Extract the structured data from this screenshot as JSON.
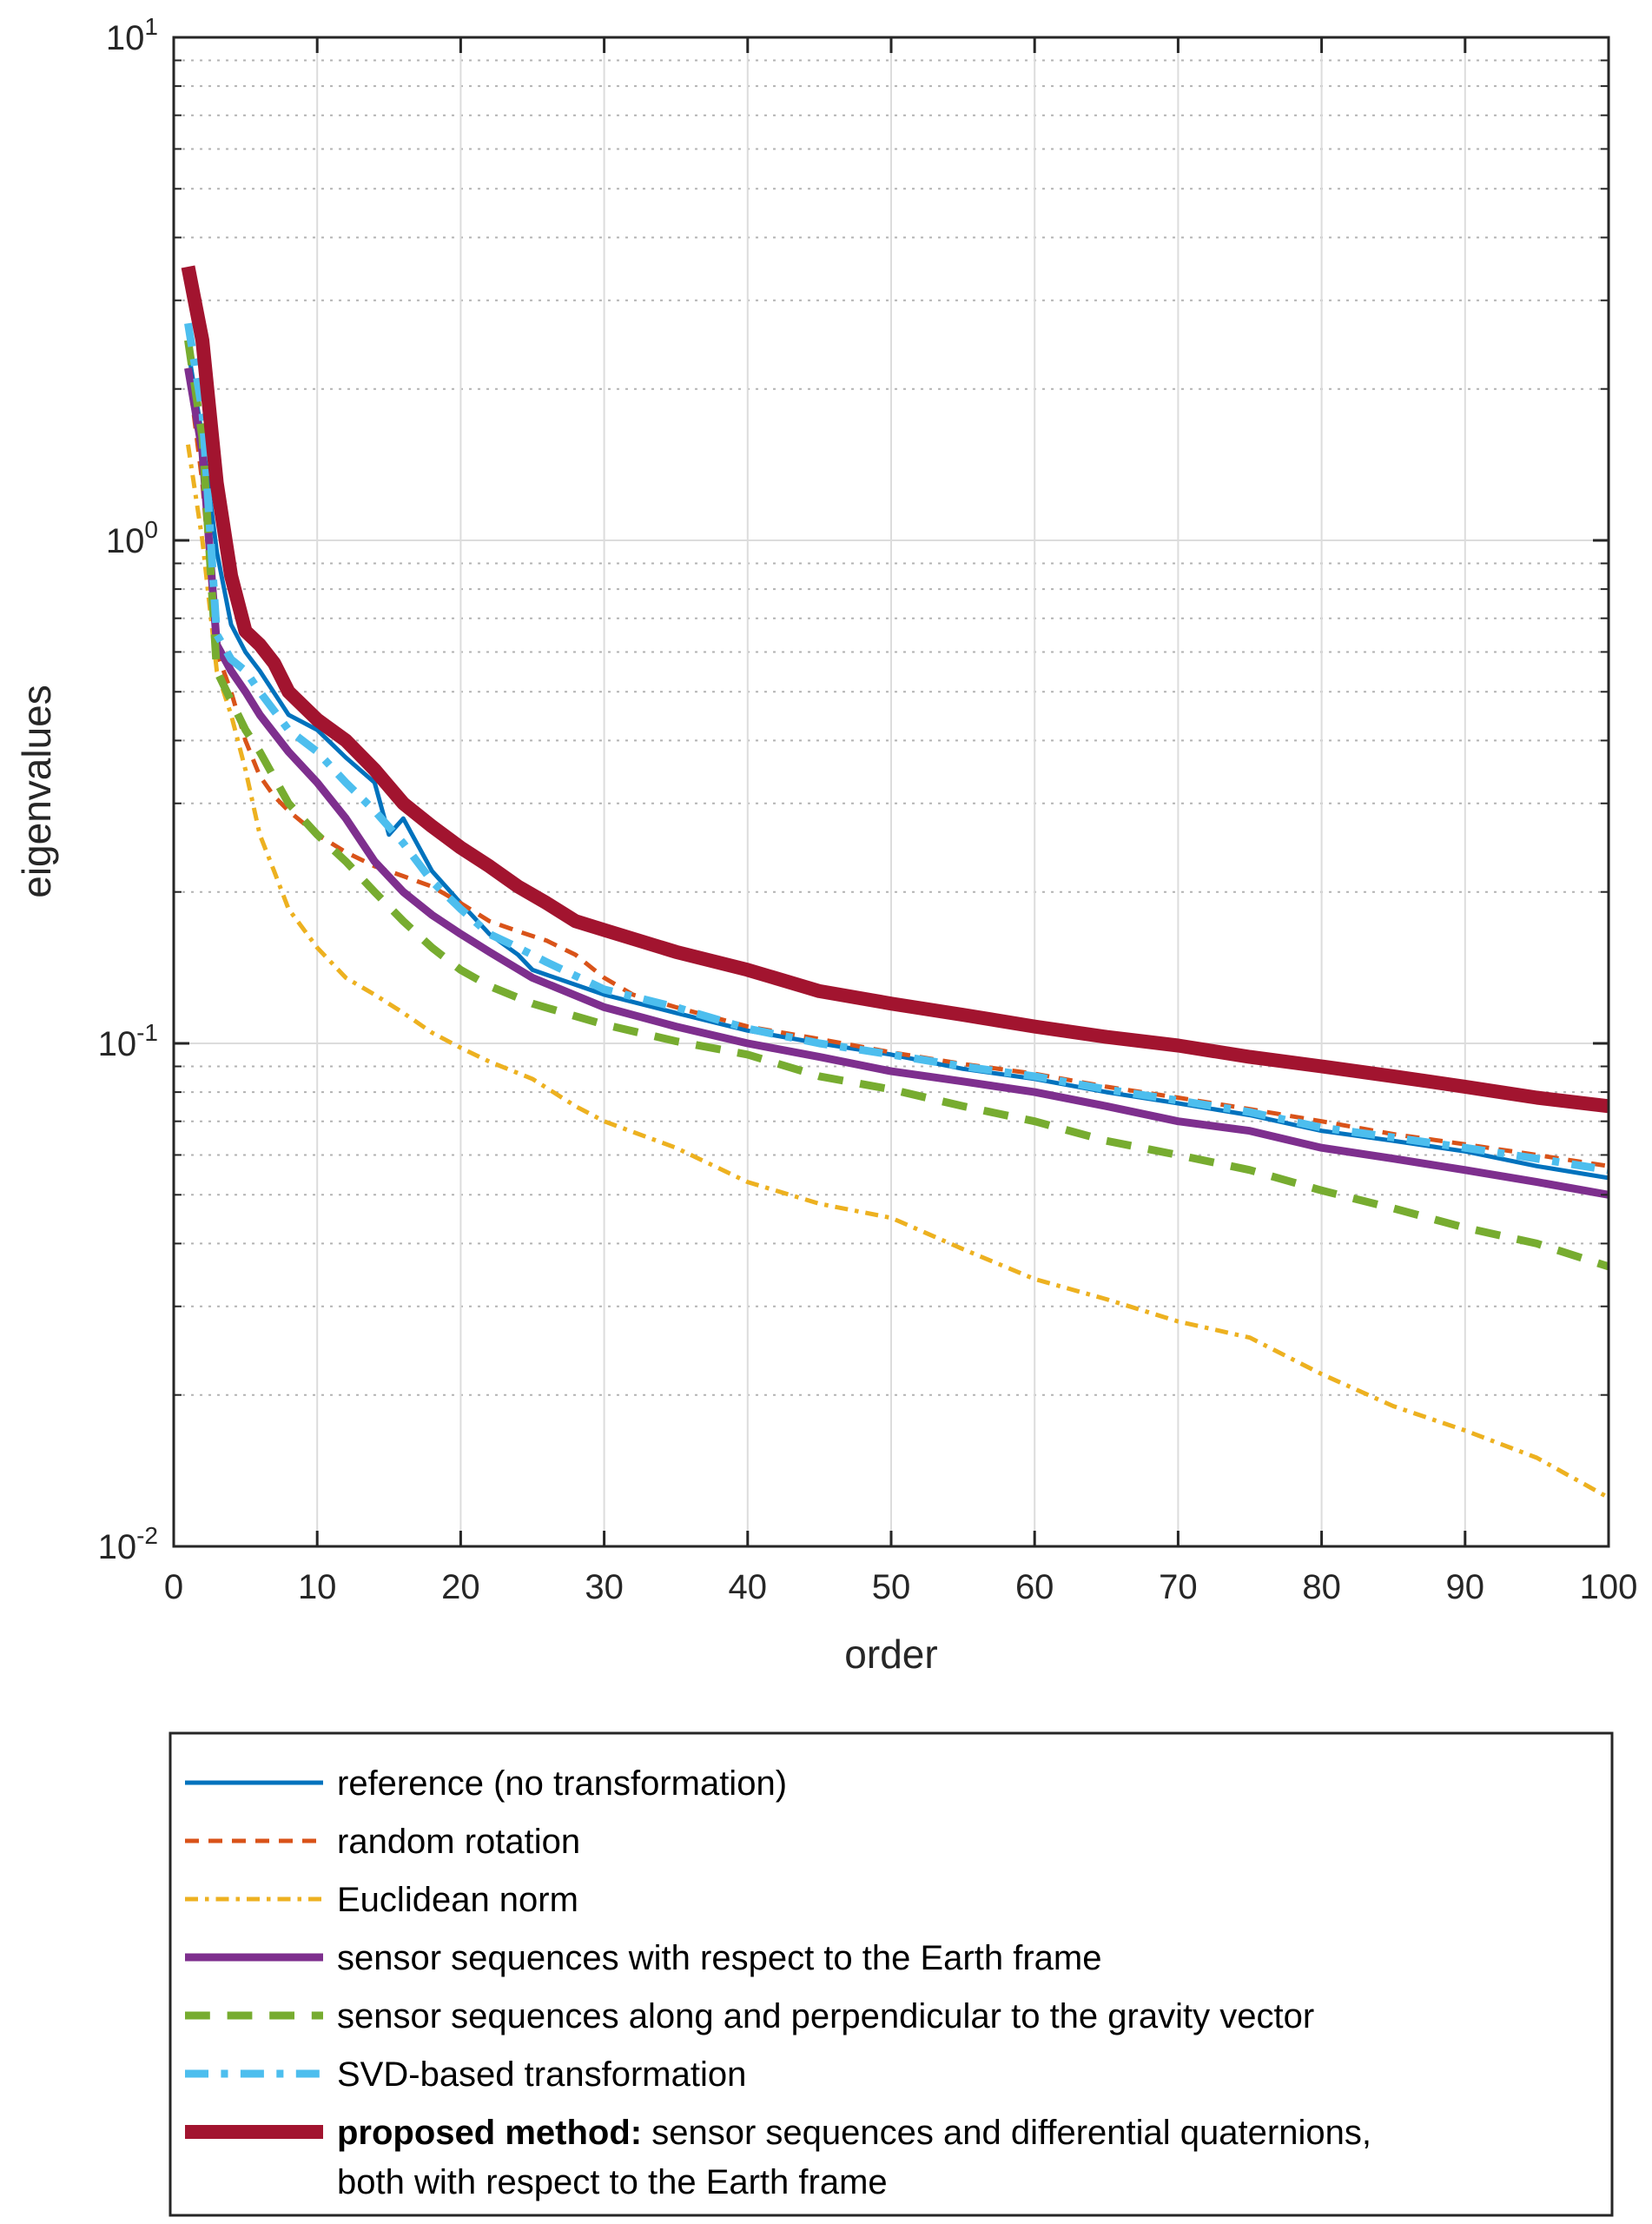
{
  "chart_data": {
    "type": "line",
    "title": "",
    "xlabel": "order",
    "ylabel": "eigenvalues",
    "xlim": [
      0,
      100
    ],
    "ylim": [
      0.01,
      0.1,
      1,
      10
    ],
    "yscale": "log",
    "grid": true,
    "x_ticks": [
      "0",
      "10",
      "20",
      "30",
      "40",
      "50",
      "60",
      "70",
      "80",
      "90",
      "100"
    ],
    "y_ticks": [
      {
        "base": "10",
        "exp": "-2"
      },
      {
        "base": "10",
        "exp": "-1"
      },
      {
        "base": "10",
        "exp": "0"
      },
      {
        "base": "10",
        "exp": "1"
      }
    ],
    "legend_placement": "below",
    "series": [
      {
        "name": "reference (no transformation)",
        "color": "#0072BD",
        "style": "solid",
        "width": 5,
        "points": [
          [
            1,
            2.4
          ],
          [
            2,
            1.6
          ],
          [
            3,
            0.95
          ],
          [
            4,
            0.68
          ],
          [
            5,
            0.6
          ],
          [
            6,
            0.55
          ],
          [
            8,
            0.45
          ],
          [
            10,
            0.42
          ],
          [
            12,
            0.37
          ],
          [
            14,
            0.33
          ],
          [
            15,
            0.26
          ],
          [
            16,
            0.28
          ],
          [
            18,
            0.22
          ],
          [
            20,
            0.19
          ],
          [
            22,
            0.165
          ],
          [
            24,
            0.15
          ],
          [
            25,
            0.14
          ],
          [
            30,
            0.125
          ],
          [
            35,
            0.115
          ],
          [
            40,
            0.106
          ],
          [
            45,
            0.1
          ],
          [
            50,
            0.095
          ],
          [
            55,
            0.089
          ],
          [
            60,
            0.085
          ],
          [
            65,
            0.08
          ],
          [
            70,
            0.076
          ],
          [
            75,
            0.072
          ],
          [
            80,
            0.067
          ],
          [
            85,
            0.064
          ],
          [
            90,
            0.061
          ],
          [
            95,
            0.057
          ],
          [
            100,
            0.054
          ]
        ]
      },
      {
        "name": "random rotation",
        "color": "#D95319",
        "style": "dashed",
        "width": 5,
        "points": [
          [
            1,
            2.2
          ],
          [
            2,
            1.3
          ],
          [
            3,
            0.6
          ],
          [
            4,
            0.5
          ],
          [
            5,
            0.4
          ],
          [
            6,
            0.34
          ],
          [
            7,
            0.31
          ],
          [
            8,
            0.29
          ],
          [
            10,
            0.26
          ],
          [
            12,
            0.24
          ],
          [
            14,
            0.225
          ],
          [
            16,
            0.215
          ],
          [
            18,
            0.205
          ],
          [
            20,
            0.19
          ],
          [
            22,
            0.175
          ],
          [
            24,
            0.167
          ],
          [
            26,
            0.16
          ],
          [
            28,
            0.15
          ],
          [
            30,
            0.135
          ],
          [
            32,
            0.125
          ],
          [
            35,
            0.118
          ],
          [
            40,
            0.108
          ],
          [
            45,
            0.102
          ],
          [
            50,
            0.096
          ],
          [
            55,
            0.091
          ],
          [
            60,
            0.087
          ],
          [
            65,
            0.082
          ],
          [
            70,
            0.078
          ],
          [
            75,
            0.074
          ],
          [
            80,
            0.07
          ],
          [
            85,
            0.066
          ],
          [
            90,
            0.063
          ],
          [
            95,
            0.06
          ],
          [
            100,
            0.057
          ]
        ]
      },
      {
        "name": "Euclidean norm",
        "color": "#EDB120",
        "style": "dashdot",
        "width": 5,
        "points": [
          [
            1,
            1.55
          ],
          [
            2,
            1.0
          ],
          [
            3,
            0.55
          ],
          [
            4,
            0.45
          ],
          [
            5,
            0.35
          ],
          [
            6,
            0.26
          ],
          [
            7,
            0.22
          ],
          [
            8,
            0.185
          ],
          [
            10,
            0.155
          ],
          [
            12,
            0.135
          ],
          [
            14,
            0.125
          ],
          [
            16,
            0.115
          ],
          [
            18,
            0.105
          ],
          [
            20,
            0.098
          ],
          [
            22,
            0.092
          ],
          [
            25,
            0.085
          ],
          [
            28,
            0.075
          ],
          [
            30,
            0.07
          ],
          [
            35,
            0.062
          ],
          [
            40,
            0.053
          ],
          [
            45,
            0.048
          ],
          [
            50,
            0.045
          ],
          [
            55,
            0.039
          ],
          [
            60,
            0.034
          ],
          [
            65,
            0.031
          ],
          [
            70,
            0.028
          ],
          [
            75,
            0.026
          ],
          [
            80,
            0.022
          ],
          [
            85,
            0.019
          ],
          [
            90,
            0.017
          ],
          [
            95,
            0.015
          ],
          [
            100,
            0.0125
          ]
        ]
      },
      {
        "name": "sensor sequences with respect to the Earth frame",
        "color": "#7E2F8E",
        "style": "solid",
        "width": 9,
        "points": [
          [
            1,
            2.2
          ],
          [
            2,
            1.5
          ],
          [
            3,
            0.62
          ],
          [
            4,
            0.55
          ],
          [
            5,
            0.5
          ],
          [
            6,
            0.45
          ],
          [
            8,
            0.38
          ],
          [
            10,
            0.33
          ],
          [
            12,
            0.28
          ],
          [
            14,
            0.23
          ],
          [
            16,
            0.2
          ],
          [
            18,
            0.18
          ],
          [
            20,
            0.165
          ],
          [
            22,
            0.152
          ],
          [
            25,
            0.135
          ],
          [
            30,
            0.118
          ],
          [
            35,
            0.108
          ],
          [
            40,
            0.1
          ],
          [
            45,
            0.094
          ],
          [
            50,
            0.088
          ],
          [
            55,
            0.084
          ],
          [
            60,
            0.08
          ],
          [
            65,
            0.075
          ],
          [
            70,
            0.07
          ],
          [
            75,
            0.067
          ],
          [
            80,
            0.062
          ],
          [
            85,
            0.059
          ],
          [
            90,
            0.056
          ],
          [
            95,
            0.053
          ],
          [
            100,
            0.05
          ]
        ]
      },
      {
        "name": "sensor sequences along and perpendicular to the gravity vector",
        "color": "#77AC30",
        "style": "dashed",
        "width": 9,
        "points": [
          [
            1,
            2.5
          ],
          [
            2,
            1.6
          ],
          [
            3,
            0.55
          ],
          [
            4,
            0.48
          ],
          [
            5,
            0.42
          ],
          [
            6,
            0.38
          ],
          [
            8,
            0.3
          ],
          [
            10,
            0.26
          ],
          [
            12,
            0.23
          ],
          [
            14,
            0.2
          ],
          [
            16,
            0.175
          ],
          [
            18,
            0.155
          ],
          [
            20,
            0.14
          ],
          [
            22,
            0.13
          ],
          [
            25,
            0.12
          ],
          [
            30,
            0.109
          ],
          [
            35,
            0.101
          ],
          [
            40,
            0.095
          ],
          [
            45,
            0.086
          ],
          [
            50,
            0.081
          ],
          [
            55,
            0.075
          ],
          [
            60,
            0.07
          ],
          [
            65,
            0.064
          ],
          [
            70,
            0.06
          ],
          [
            75,
            0.056
          ],
          [
            80,
            0.051
          ],
          [
            85,
            0.047
          ],
          [
            90,
            0.043
          ],
          [
            95,
            0.04
          ],
          [
            100,
            0.036
          ]
        ]
      },
      {
        "name": "SVD-based transformation",
        "color": "#4DBEEE",
        "style": "dashdot",
        "width": 9,
        "points": [
          [
            1,
            2.7
          ],
          [
            2,
            1.8
          ],
          [
            3,
            0.65
          ],
          [
            4,
            0.58
          ],
          [
            5,
            0.55
          ],
          [
            6,
            0.5
          ],
          [
            8,
            0.42
          ],
          [
            10,
            0.38
          ],
          [
            12,
            0.33
          ],
          [
            14,
            0.29
          ],
          [
            16,
            0.25
          ],
          [
            18,
            0.21
          ],
          [
            20,
            0.185
          ],
          [
            22,
            0.165
          ],
          [
            24,
            0.155
          ],
          [
            26,
            0.145
          ],
          [
            30,
            0.128
          ],
          [
            35,
            0.118
          ],
          [
            40,
            0.107
          ],
          [
            45,
            0.1
          ],
          [
            50,
            0.095
          ],
          [
            55,
            0.09
          ],
          [
            60,
            0.086
          ],
          [
            65,
            0.081
          ],
          [
            70,
            0.077
          ],
          [
            75,
            0.073
          ],
          [
            80,
            0.068
          ],
          [
            85,
            0.065
          ],
          [
            90,
            0.062
          ],
          [
            95,
            0.059
          ],
          [
            100,
            0.056
          ]
        ]
      },
      {
        "name": "proposed method: sensor sequences and differential quaternions, both with respect to the Earth frame",
        "legend_bold": "proposed method:",
        "legend_line1": "sensor sequences and differential quaternions,",
        "legend_line2": "both with respect to the Earth frame",
        "color": "#A2142F",
        "style": "solid",
        "width": 16,
        "points": [
          [
            1,
            3.5
          ],
          [
            2,
            2.5
          ],
          [
            3,
            1.3
          ],
          [
            4,
            0.85
          ],
          [
            5,
            0.66
          ],
          [
            6,
            0.62
          ],
          [
            7,
            0.57
          ],
          [
            8,
            0.5
          ],
          [
            10,
            0.44
          ],
          [
            12,
            0.4
          ],
          [
            14,
            0.35
          ],
          [
            16,
            0.3
          ],
          [
            18,
            0.27
          ],
          [
            20,
            0.245
          ],
          [
            22,
            0.225
          ],
          [
            24,
            0.205
          ],
          [
            26,
            0.19
          ],
          [
            28,
            0.175
          ],
          [
            30,
            0.168
          ],
          [
            35,
            0.152
          ],
          [
            40,
            0.14
          ],
          [
            45,
            0.127
          ],
          [
            50,
            0.12
          ],
          [
            55,
            0.114
          ],
          [
            60,
            0.108
          ],
          [
            65,
            0.103
          ],
          [
            70,
            0.099
          ],
          [
            75,
            0.094
          ],
          [
            80,
            0.09
          ],
          [
            85,
            0.086
          ],
          [
            90,
            0.082
          ],
          [
            95,
            0.078
          ],
          [
            100,
            0.075
          ]
        ]
      }
    ]
  }
}
